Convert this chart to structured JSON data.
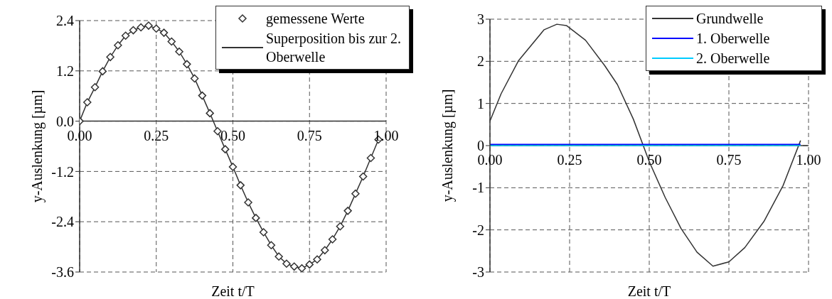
{
  "chart_data": [
    {
      "type": "line",
      "xlabel": "Zeit t/T",
      "ylabel": "y-Auslenkung [µm]",
      "xlim": [
        0,
        1
      ],
      "xticks": [
        {
          "value": 0,
          "label": "0.00"
        },
        {
          "value": 0.25,
          "label": "0.25"
        },
        {
          "value": 0.5,
          "label": "0.50"
        },
        {
          "value": 0.75,
          "label": "0.75"
        },
        {
          "value": 1,
          "label": "1.00"
        }
      ],
      "ylim": [
        -3.6,
        2.4
      ],
      "yticks": [
        -3.6,
        -2.4,
        -1.2,
        {
          "value": 0,
          "label": "0.0"
        },
        1.2,
        2.4
      ],
      "grid": true,
      "legend": "top right",
      "series": [
        {
          "name": "gemessene Werte",
          "type": "scatter",
          "marker": "diamond",
          "color": "#333333",
          "x": [
            0,
            0.025,
            0.05,
            0.075,
            0.1,
            0.125,
            0.15,
            0.175,
            0.2,
            0.225,
            0.25,
            0.275,
            0.3,
            0.325,
            0.35,
            0.375,
            0.4,
            0.425,
            0.45,
            0.475,
            0.5,
            0.525,
            0.55,
            0.575,
            0.6,
            0.625,
            0.65,
            0.675,
            0.7,
            0.725,
            0.75,
            0.775,
            0.8,
            0.825,
            0.85,
            0.875,
            0.9,
            0.925,
            0.95,
            0.975
          ],
          "values": [
            0,
            0.45,
            0.81,
            1.19,
            1.53,
            1.81,
            2.04,
            2.17,
            2.24,
            2.28,
            2.21,
            2.11,
            1.9,
            1.66,
            1.36,
            1.02,
            0.61,
            0.19,
            -0.24,
            -0.67,
            -1.09,
            -1.53,
            -1.94,
            -2.31,
            -2.65,
            -2.96,
            -3.23,
            -3.4,
            -3.47,
            -3.51,
            -3.42,
            -3.3,
            -3.08,
            -2.82,
            -2.51,
            -2.14,
            -1.73,
            -1.32,
            -0.88,
            -0.44
          ]
        },
        {
          "name": "Superposition bis zur 2. Oberwelle",
          "type": "line",
          "marker": "none",
          "line_style": "solid",
          "color": "#333333",
          "x": [
            0,
            0.025,
            0.05,
            0.075,
            0.1,
            0.125,
            0.15,
            0.175,
            0.2,
            0.225,
            0.25,
            0.275,
            0.3,
            0.325,
            0.35,
            0.375,
            0.4,
            0.425,
            0.45,
            0.475,
            0.5,
            0.525,
            0.55,
            0.575,
            0.6,
            0.625,
            0.65,
            0.675,
            0.7,
            0.725,
            0.75,
            0.775,
            0.8,
            0.825,
            0.85,
            0.875,
            0.9,
            0.925,
            0.95,
            0.975
          ],
          "values": [
            0,
            0.45,
            0.81,
            1.19,
            1.53,
            1.81,
            2.04,
            2.17,
            2.24,
            2.28,
            2.21,
            2.11,
            1.9,
            1.66,
            1.36,
            1.02,
            0.61,
            0.19,
            -0.24,
            -0.67,
            -1.09,
            -1.53,
            -1.94,
            -2.31,
            -2.65,
            -2.96,
            -3.23,
            -3.4,
            -3.47,
            -3.51,
            -3.42,
            -3.3,
            -3.08,
            -2.82,
            -2.51,
            -2.14,
            -1.73,
            -1.32,
            -0.88,
            -0.44
          ]
        }
      ]
    },
    {
      "type": "line",
      "xlabel": "Zeit t/T",
      "ylabel": "y-Auslenkung [µm]",
      "xlim": [
        0,
        1
      ],
      "xticks": [
        {
          "value": 0,
          "label": "0.00"
        },
        {
          "value": 0.25,
          "label": "0.25"
        },
        {
          "value": 0.5,
          "label": "0.50"
        },
        {
          "value": 0.75,
          "label": "0.75"
        },
        {
          "value": 1,
          "label": "1.00"
        }
      ],
      "ylim": [
        -3,
        3
      ],
      "yticks": [
        -3,
        -2,
        -1,
        0,
        1,
        2,
        3
      ],
      "grid": true,
      "legend": "top right",
      "marker": "none",
      "line_style": "solid",
      "series": [
        {
          "name": "Grundwelle",
          "color": "#333333",
          "x": [
            0,
            0.035,
            0.09,
            0.17,
            0.21,
            0.24,
            0.3,
            0.36,
            0.4,
            0.45,
            0.5,
            0.55,
            0.6,
            0.65,
            0.7,
            0.75,
            0.8,
            0.86,
            0.92,
            0.975
          ],
          "values": [
            0.58,
            1.23,
            2.02,
            2.75,
            2.88,
            2.85,
            2.5,
            1.9,
            1.45,
            0.63,
            -0.38,
            -1.23,
            -1.97,
            -2.53,
            -2.86,
            -2.76,
            -2.42,
            -1.8,
            -0.95,
            0.12
          ]
        },
        {
          "name": "1. Oberwelle",
          "color": "#0000ff",
          "x": [
            0,
            0.25,
            0.5,
            0.75,
            0.975
          ],
          "values": [
            0.03,
            0.03,
            0.03,
            0.03,
            0.03
          ]
        },
        {
          "name": "2. Oberwelle",
          "color": "#00ccff",
          "x": [
            0,
            0.25,
            0.5,
            0.75,
            0.975
          ],
          "values": [
            0,
            0,
            0,
            0,
            0
          ]
        }
      ]
    }
  ]
}
